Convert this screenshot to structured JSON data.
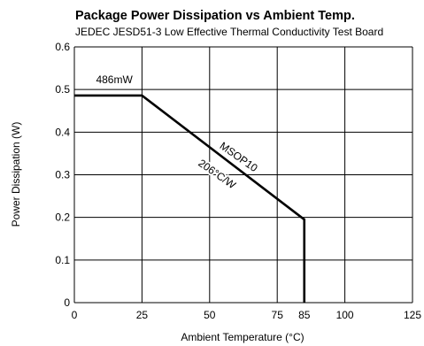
{
  "chart_data": {
    "type": "line",
    "title": "Package Power Dissipation vs Ambient Temp.",
    "subtitle": "JEDEC JESD51-3 Low Effective Thermal Conductivity Test Board",
    "xlabel": "Ambient Temperature (°C)",
    "ylabel": "Power Dissipation (W)",
    "xlim": [
      0,
      125
    ],
    "ylim": [
      0,
      0.6
    ],
    "x_ticks": [
      {
        "value": 0,
        "label": "0"
      },
      {
        "value": 25,
        "label": "25"
      },
      {
        "value": 50,
        "label": "50"
      },
      {
        "value": 75,
        "label": "75"
      },
      {
        "value": 85,
        "label": "85"
      },
      {
        "value": 100,
        "label": "100"
      },
      {
        "value": 125,
        "label": "125"
      }
    ],
    "y_ticks": [
      {
        "value": 0,
        "label": "0"
      },
      {
        "value": 0.1,
        "label": "0.1"
      },
      {
        "value": 0.2,
        "label": "0.2"
      },
      {
        "value": 0.3,
        "label": "0.3"
      },
      {
        "value": 0.4,
        "label": "0.4"
      },
      {
        "value": 0.5,
        "label": "0.5"
      },
      {
        "value": 0.6,
        "label": "0.6"
      }
    ],
    "grid_x": [
      0,
      25,
      50,
      75,
      100,
      125
    ],
    "grid_y": [
      0,
      0.1,
      0.2,
      0.3,
      0.4,
      0.5,
      0.6
    ],
    "grid": true,
    "series": [
      {
        "x": [
          0,
          25,
          85,
          85
        ],
        "y": [
          0.486,
          0.486,
          0.195,
          0
        ]
      }
    ],
    "annotations": [
      {
        "text": "486mW",
        "x": 8,
        "y": 0.515
      },
      {
        "text": "MSOP10",
        "x": 60,
        "y": 0.335,
        "angle": 35
      },
      {
        "text": "206°C/W",
        "x": 52,
        "y": 0.295,
        "angle": 35
      }
    ]
  }
}
